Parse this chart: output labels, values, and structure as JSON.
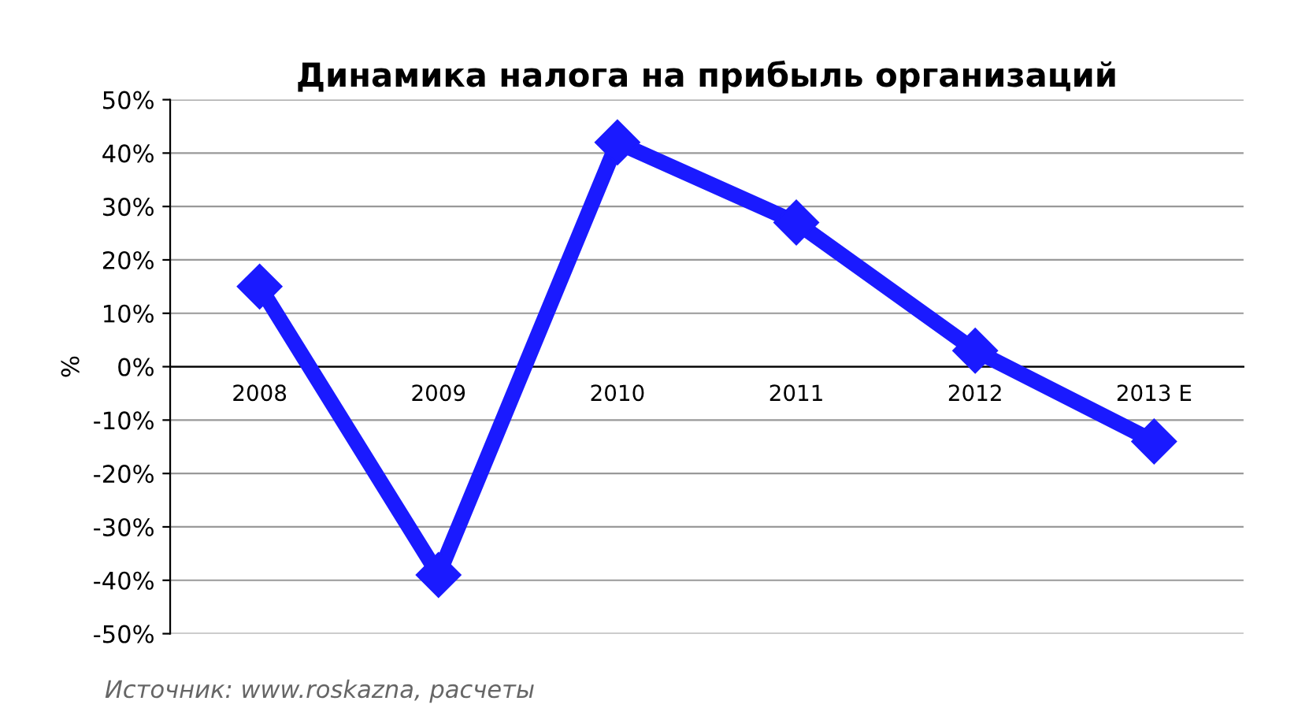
{
  "chart_data": {
    "type": "line",
    "title": "Динамика налога на прибыль организаций",
    "ylabel": "%",
    "categories": [
      "2008",
      "2009",
      "2010",
      "2011",
      "2012",
      "2013 E"
    ],
    "series": [
      {
        "color": "#1a1aff",
        "values": [
          15,
          -39,
          42,
          27,
          3,
          -14
        ]
      }
    ],
    "ylim": [
      -50,
      50
    ],
    "yticks": [
      {
        "value": -50,
        "label": "-50%"
      },
      {
        "value": -40,
        "label": "-40%"
      },
      {
        "value": -30,
        "label": "-30%"
      },
      {
        "value": -20,
        "label": "-20%"
      },
      {
        "value": -10,
        "label": "-10%"
      },
      {
        "value": 0,
        "label": "0%"
      },
      {
        "value": 10,
        "label": "10%"
      },
      {
        "value": 20,
        "label": "20%"
      },
      {
        "value": 30,
        "label": "30%"
      },
      {
        "value": 40,
        "label": "40%"
      },
      {
        "value": 50,
        "label": "50%"
      }
    ],
    "grid": "y",
    "marker": "diamond",
    "line_style": "solid",
    "annotations": [
      "Источник: www.roskazna, расчеты"
    ]
  }
}
